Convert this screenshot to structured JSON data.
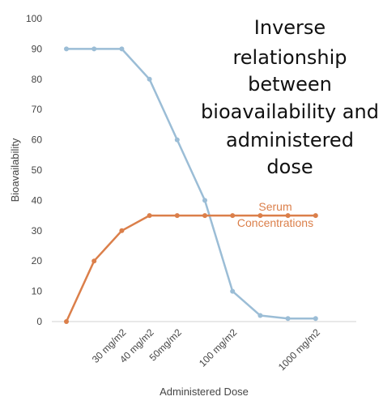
{
  "chart_data": {
    "type": "line",
    "title_lines": [
      "Inverse",
      "relationship",
      "between",
      "bioavailability and",
      "administered",
      "dose"
    ],
    "xlabel": "Administered Dose",
    "ylabel": "Bioavailability",
    "ylim": [
      0,
      100
    ],
    "y_ticks": [
      "0",
      "10",
      "20",
      "30",
      "40",
      "50",
      "60",
      "70",
      "80",
      "90",
      "100"
    ],
    "x_tick_labels": [
      {
        "label": "30 mg/m2",
        "at": 2
      },
      {
        "label": "40 mg/m2",
        "at": 3
      },
      {
        "label": "50mg/m2",
        "at": 4
      },
      {
        "label": "100 mg/m2",
        "at": 6
      },
      {
        "label": "1000 mg/m2",
        "at": 9
      }
    ],
    "x_count": 10,
    "grid": false,
    "series": [
      {
        "key": "bioavailability",
        "color": "#9bbdd6",
        "values": [
          90,
          90,
          90,
          80,
          60,
          40,
          10,
          2,
          1,
          1
        ],
        "x_offset": 0
      },
      {
        "key": "serum",
        "name_lines": [
          "Serum",
          "Concentrations"
        ],
        "color": "#db7f4a",
        "values": [
          0,
          20,
          30,
          35,
          35,
          35,
          35,
          35,
          35,
          35
        ],
        "x_offset": 0
      }
    ]
  }
}
